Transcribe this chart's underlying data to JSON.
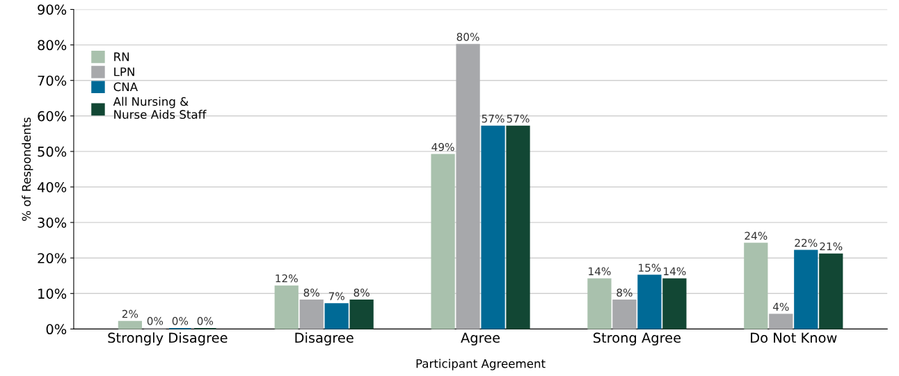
{
  "chart_data": {
    "type": "bar",
    "xlabel": "Participant Agreement",
    "ylabel": "% of Respondents",
    "categories": [
      "Strongly Disagree",
      "Disagree",
      "Agree",
      "Strong Agree",
      "Do Not Know"
    ],
    "series": [
      {
        "name": "RN",
        "color": "#a9c1ad",
        "values": [
          2,
          12,
          49,
          14,
          24
        ],
        "value_labels": [
          "2%",
          "12%",
          "49%",
          "14%",
          "24%"
        ]
      },
      {
        "name": "LPN",
        "color": "#a7a8ab",
        "values": [
          0,
          8,
          80,
          8,
          4
        ],
        "value_labels": [
          "0%",
          "8%",
          "80%",
          "8%",
          "4%"
        ]
      },
      {
        "name": "CNA",
        "color": "#006a96",
        "values": [
          0,
          7,
          57,
          15,
          22
        ],
        "value_labels": [
          "0%",
          "7%",
          "57%",
          "15%",
          "22%"
        ]
      },
      {
        "name": "All Nursing &\nNurse Aids Staff",
        "color": "#124734",
        "values": [
          0,
          8,
          57,
          14,
          21
        ],
        "value_labels": [
          "0%",
          "8%",
          "57%",
          "14%",
          "21%"
        ]
      }
    ],
    "ylim": [
      0,
      90
    ],
    "yticks": [
      {
        "value": 0,
        "label": "0%"
      },
      {
        "value": 10,
        "label": "10%"
      },
      {
        "value": 20,
        "label": "20%"
      },
      {
        "value": 30,
        "label": "30%"
      },
      {
        "value": 40,
        "label": "40%"
      },
      {
        "value": 50,
        "label": "50%"
      },
      {
        "value": 60,
        "label": "60%"
      },
      {
        "value": 70,
        "label": "70%"
      },
      {
        "value": 80,
        "label": "80%"
      },
      {
        "value": 90,
        "label": "90%"
      }
    ],
    "grid": "y",
    "legend": "top left"
  }
}
